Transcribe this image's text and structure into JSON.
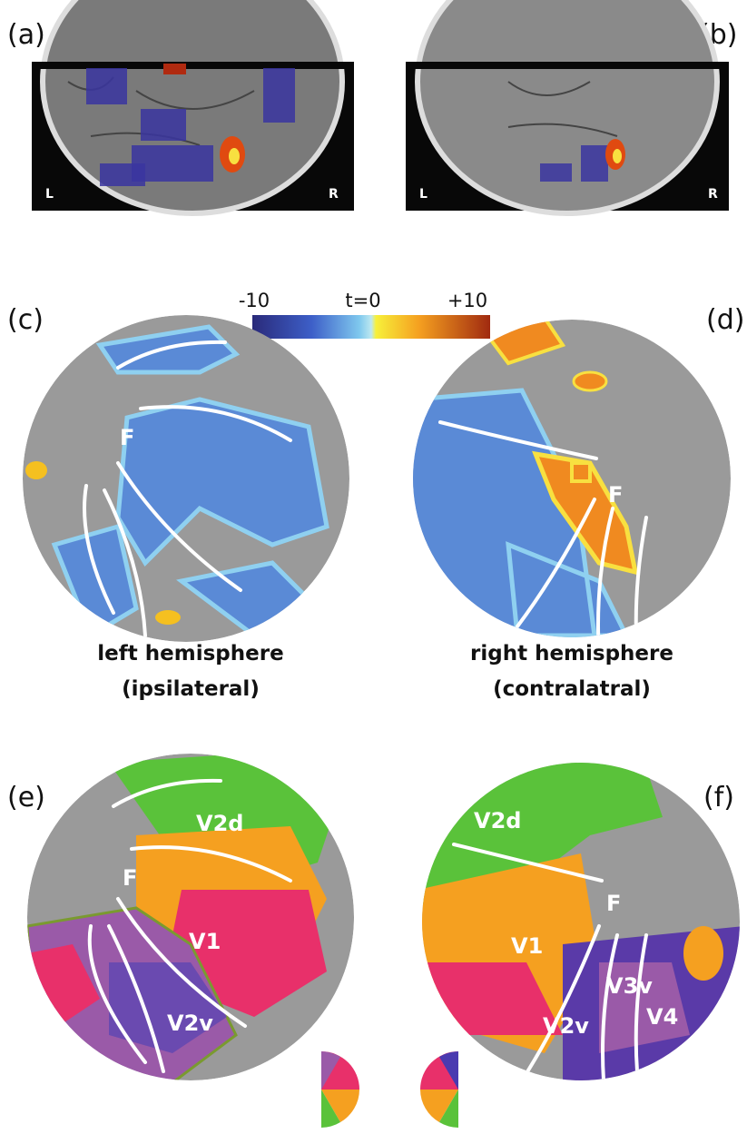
{
  "panels": {
    "a": {
      "label": "(a)",
      "left": "L",
      "right": "R"
    },
    "b": {
      "label": "(b)",
      "left": "L",
      "right": "R"
    },
    "colorbar": {
      "min": "-10",
      "mid": "t=0",
      "max": "+10"
    },
    "c": {
      "label": "(c)",
      "marks": [
        "F"
      ]
    },
    "d": {
      "label": "(d)",
      "marks": [
        "F"
      ]
    },
    "captions": {
      "left": [
        "left hemisphere",
        "(ipsilateral)"
      ],
      "right": [
        "right hemisphere",
        "(contralatral)"
      ]
    },
    "e": {
      "label": "(e)",
      "marks": [
        "V2d",
        "F",
        "V1",
        "V2v"
      ]
    },
    "f": {
      "label": "(f)",
      "marks": [
        "V2d",
        "F",
        "V1",
        "V2v",
        "V3v",
        "V4"
      ]
    }
  }
}
